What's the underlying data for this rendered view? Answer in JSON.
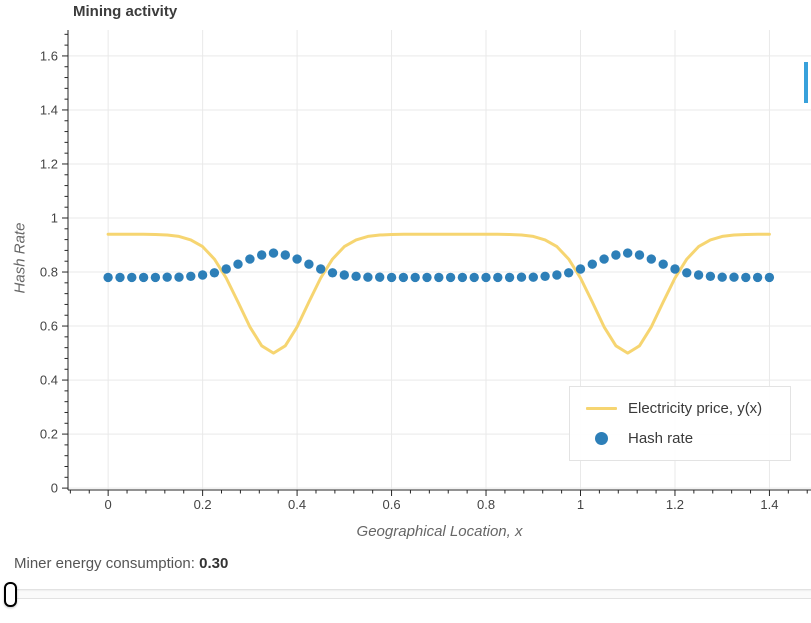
{
  "chart_data": {
    "type": "line",
    "title": "Mining activity",
    "xlabel": "Geographical Location, x",
    "ylabel": "Hash Rate",
    "xlim": [
      -0.085,
      1.488
    ],
    "ylim": [
      -0.007,
      1.696
    ],
    "x_ticks": [
      0,
      0.2,
      0.4,
      0.6,
      0.8,
      1,
      1.2,
      1.4
    ],
    "x_tick_labels": [
      "0",
      "0.2",
      "0.4",
      "0.6",
      "0.8",
      "1",
      "1.2",
      "1.4"
    ],
    "y_ticks": [
      0,
      0.2,
      0.4,
      0.6,
      0.8,
      1,
      1.2,
      1.4,
      1.6
    ],
    "y_tick_labels": [
      "0",
      "0.2",
      "0.4",
      "0.6",
      "0.8",
      "1",
      "1.2",
      "1.4",
      "1.6"
    ],
    "grid": true,
    "legend_position": "bottom-right",
    "x": [
      0.0,
      0.025,
      0.05,
      0.075,
      0.1,
      0.125,
      0.15,
      0.175,
      0.2,
      0.225,
      0.25,
      0.275,
      0.3,
      0.325,
      0.35,
      0.375,
      0.4,
      0.425,
      0.45,
      0.475,
      0.5,
      0.525,
      0.55,
      0.575,
      0.6,
      0.625,
      0.65,
      0.675,
      0.7,
      0.725,
      0.75,
      0.775,
      0.8,
      0.825,
      0.85,
      0.875,
      0.9,
      0.925,
      0.95,
      0.975,
      1.0,
      1.025,
      1.05,
      1.075,
      1.1,
      1.125,
      1.15,
      1.175,
      1.2,
      1.225,
      1.25,
      1.275,
      1.3,
      1.325,
      1.35,
      1.375,
      1.4
    ],
    "series": [
      {
        "name": "Electricity price, y(x)",
        "style": "line",
        "color": "#f6d571",
        "values": [
          0.94,
          0.94,
          0.94,
          0.94,
          0.939,
          0.937,
          0.932,
          0.919,
          0.894,
          0.848,
          0.778,
          0.689,
          0.597,
          0.527,
          0.5,
          0.527,
          0.597,
          0.689,
          0.778,
          0.848,
          0.894,
          0.919,
          0.932,
          0.937,
          0.939,
          0.94,
          0.94,
          0.94,
          0.94,
          0.94,
          0.94,
          0.94,
          0.94,
          0.94,
          0.939,
          0.937,
          0.932,
          0.919,
          0.894,
          0.848,
          0.778,
          0.689,
          0.597,
          0.527,
          0.5,
          0.527,
          0.597,
          0.689,
          0.778,
          0.848,
          0.894,
          0.919,
          0.932,
          0.937,
          0.939,
          0.94,
          0.94
        ]
      },
      {
        "name": "Hash rate",
        "style": "scatter",
        "color": "#2d7fb8",
        "values": [
          0.78,
          0.78,
          0.78,
          0.78,
          0.78,
          0.781,
          0.781,
          0.784,
          0.789,
          0.797,
          0.811,
          0.829,
          0.848,
          0.863,
          0.87,
          0.863,
          0.848,
          0.829,
          0.811,
          0.797,
          0.789,
          0.784,
          0.781,
          0.781,
          0.78,
          0.78,
          0.78,
          0.78,
          0.78,
          0.78,
          0.78,
          0.78,
          0.78,
          0.78,
          0.78,
          0.781,
          0.781,
          0.784,
          0.789,
          0.797,
          0.811,
          0.829,
          0.848,
          0.863,
          0.87,
          0.863,
          0.848,
          0.829,
          0.811,
          0.797,
          0.789,
          0.784,
          0.781,
          0.781,
          0.78,
          0.78,
          0.78
        ]
      }
    ]
  },
  "controls": {
    "slider_label": "Miner energy consumption:",
    "slider_value": "0.30"
  },
  "colors": {
    "grid": "#e9e9e9",
    "axis": "#262626",
    "tick_label": "#444444",
    "toolbar_indicator": "#38a1db"
  }
}
